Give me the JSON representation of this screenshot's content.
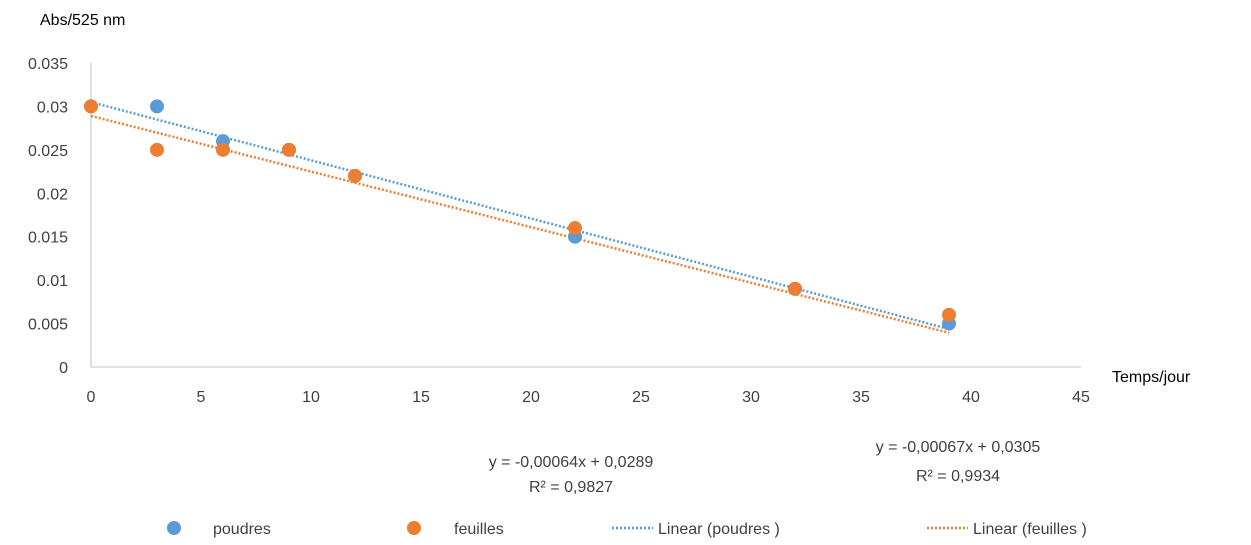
{
  "chart_data": {
    "type": "scatter",
    "xlabel": "Temps/jour",
    "ylabel": "Abs/525 nm",
    "xlim": [
      0,
      45
    ],
    "ylim": [
      0,
      0.035
    ],
    "x_ticks": [
      0,
      5,
      10,
      15,
      20,
      25,
      30,
      35,
      40,
      45
    ],
    "y_ticks": [
      0,
      0.005,
      0.01,
      0.015,
      0.02,
      0.025,
      0.03,
      0.035
    ],
    "x_tick_labels": [
      "0",
      "5",
      "10",
      "15",
      "20",
      "25",
      "30",
      "35",
      "40",
      "45"
    ],
    "y_tick_labels": [
      "0",
      "0.005",
      "0.01",
      "0.015",
      "0.02",
      "0.025",
      "0.03",
      "0.035"
    ],
    "grid": false,
    "legend_position": "bottom",
    "series": [
      {
        "name": "poudres",
        "color": "#5B9BD5",
        "x": [
          0,
          3,
          6,
          9,
          12,
          22,
          32,
          39
        ],
        "y": [
          0.03,
          0.03,
          0.026,
          0.025,
          0.022,
          0.015,
          0.009,
          0.005
        ]
      },
      {
        "name": "feuilles",
        "color": "#ED7D31",
        "x": [
          0,
          3,
          6,
          9,
          12,
          22,
          32,
          39
        ],
        "y": [
          0.03,
          0.025,
          0.025,
          0.025,
          0.022,
          0.016,
          0.009,
          0.006
        ]
      }
    ],
    "trendlines": [
      {
        "name": "Linear (poudres )",
        "series": "poudres",
        "color": "#5B9BD5",
        "slope": -0.00067,
        "intercept": 0.0305,
        "x_range": [
          0,
          39
        ],
        "equation": "y = -0,00067x + 0,0305",
        "r2": "R² = 0,9934"
      },
      {
        "name": "Linear (feuilles )",
        "series": "feuilles",
        "color": "#ED7D31",
        "slope": -0.00064,
        "intercept": 0.0289,
        "x_range": [
          0,
          39
        ],
        "equation": "y = -0,00064x + 0,0289",
        "r2": "R² = 0,9827"
      }
    ]
  }
}
